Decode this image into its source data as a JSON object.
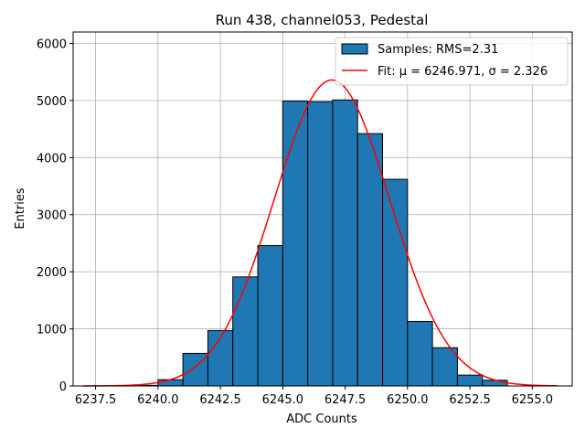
{
  "chart_data": {
    "type": "bar",
    "title": "Run 438, channel053, Pedestal",
    "xlabel": "ADC Counts",
    "ylabel": "Entries",
    "xlim": [
      6236.6,
      6256.6
    ],
    "ylim": [
      0,
      6200
    ],
    "grid": true,
    "legend_position": "top-right",
    "x_ticks": [
      6237.5,
      6240.0,
      6242.5,
      6245.0,
      6247.5,
      6250.0,
      6252.5,
      6255.0
    ],
    "x_tick_labels": [
      "6237.5",
      "6240.0",
      "6242.5",
      "6245.0",
      "6247.5",
      "6250.0",
      "6252.5",
      "6255.0"
    ],
    "y_ticks": [
      0,
      1000,
      2000,
      3000,
      4000,
      5000,
      6000
    ],
    "y_tick_labels": [
      "0",
      "1000",
      "2000",
      "3000",
      "4000",
      "5000",
      "6000"
    ],
    "histogram": {
      "name": "Samples: RMS=2.31",
      "color": "#1f77b4",
      "edge_color": "#000000",
      "bins": [
        {
          "left": 6237,
          "right": 6238,
          "value": 0
        },
        {
          "left": 6238,
          "right": 6239,
          "value": 0
        },
        {
          "left": 6239,
          "right": 6240,
          "value": 10
        },
        {
          "left": 6240,
          "right": 6241,
          "value": 110
        },
        {
          "left": 6241,
          "right": 6242,
          "value": 570
        },
        {
          "left": 6242,
          "right": 6243,
          "value": 970
        },
        {
          "left": 6243,
          "right": 6244,
          "value": 1910
        },
        {
          "left": 6244,
          "right": 6245,
          "value": 2460
        },
        {
          "left": 6245,
          "right": 6246,
          "value": 4990
        },
        {
          "left": 6246,
          "right": 6247,
          "value": 4980
        },
        {
          "left": 6247,
          "right": 6248,
          "value": 5010
        },
        {
          "left": 6248,
          "right": 6249,
          "value": 4420
        },
        {
          "left": 6249,
          "right": 6250,
          "value": 3620
        },
        {
          "left": 6250,
          "right": 6251,
          "value": 1130
        },
        {
          "left": 6251,
          "right": 6252,
          "value": 670
        },
        {
          "left": 6252,
          "right": 6253,
          "value": 190
        },
        {
          "left": 6253,
          "right": 6254,
          "value": 100
        }
      ]
    },
    "fit": {
      "name": "Fit: μ = 6246.971, σ = 2.326",
      "color": "#ff0000",
      "mu": 6246.971,
      "sigma": 2.326,
      "amplitude": 5360,
      "x_range": [
        6237.0,
        6256.0
      ]
    }
  }
}
